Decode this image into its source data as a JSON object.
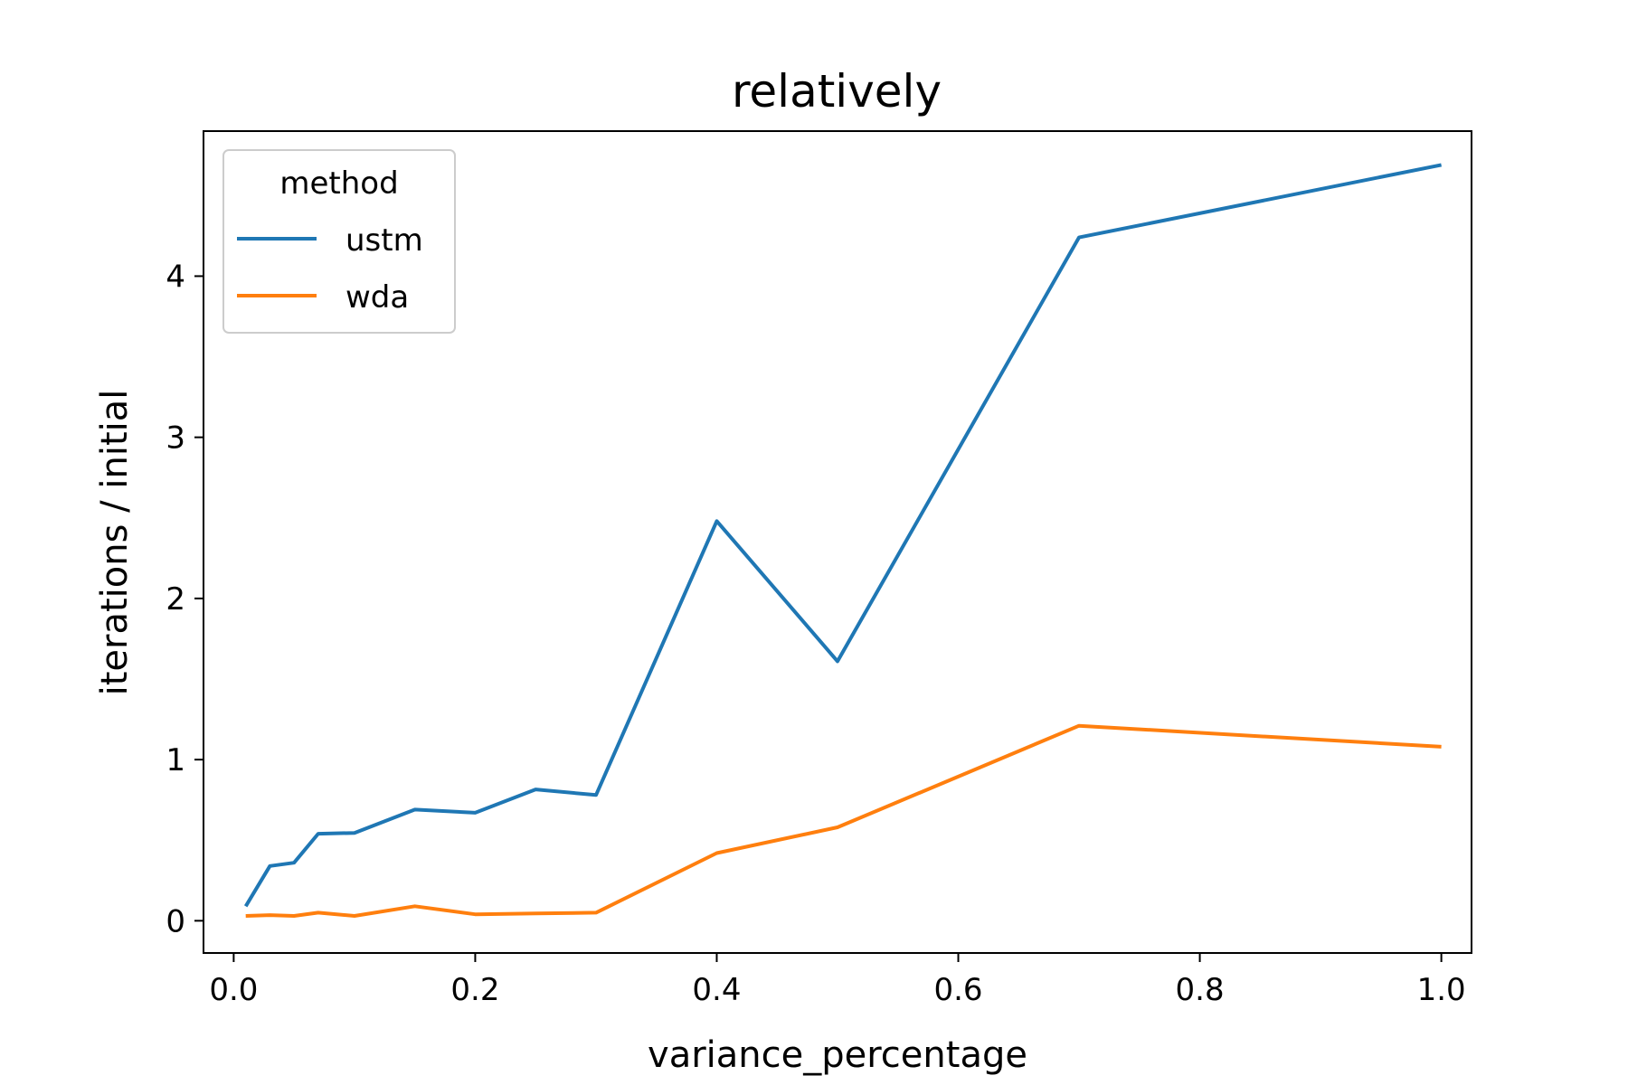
{
  "chart_data": {
    "type": "line",
    "title": "relatively",
    "xlabel": "variance_percentage",
    "ylabel": "iterations / initial",
    "xlim": [
      -0.025,
      1.025
    ],
    "ylim": [
      -0.2,
      4.9
    ],
    "xticks": [
      0.0,
      0.2,
      0.4,
      0.6,
      0.8,
      1.0
    ],
    "xtick_labels": [
      "0.0",
      "0.2",
      "0.4",
      "0.6",
      "0.8",
      "1.0"
    ],
    "yticks": [
      0,
      1,
      2,
      3,
      4
    ],
    "ytick_labels": [
      "0",
      "1",
      "2",
      "3",
      "4"
    ],
    "grid": false,
    "legend": {
      "title": "method",
      "position": "upper-left"
    },
    "series": [
      {
        "name": "ustm",
        "color": "#1f77b4",
        "x": [
          0.01,
          0.03,
          0.05,
          0.07,
          0.1,
          0.15,
          0.2,
          0.25,
          0.3,
          0.4,
          0.5,
          0.7,
          1.0
        ],
        "y": [
          0.09,
          0.34,
          0.36,
          0.54,
          0.545,
          0.69,
          0.67,
          0.815,
          0.78,
          2.48,
          1.61,
          4.24,
          4.69
        ]
      },
      {
        "name": "wda",
        "color": "#ff7f0e",
        "x": [
          0.01,
          0.03,
          0.05,
          0.07,
          0.1,
          0.15,
          0.2,
          0.25,
          0.3,
          0.4,
          0.5,
          0.7,
          1.0
        ],
        "y": [
          0.03,
          0.035,
          0.03,
          0.05,
          0.03,
          0.09,
          0.04,
          0.045,
          0.05,
          0.42,
          0.58,
          1.21,
          1.08
        ]
      }
    ]
  }
}
